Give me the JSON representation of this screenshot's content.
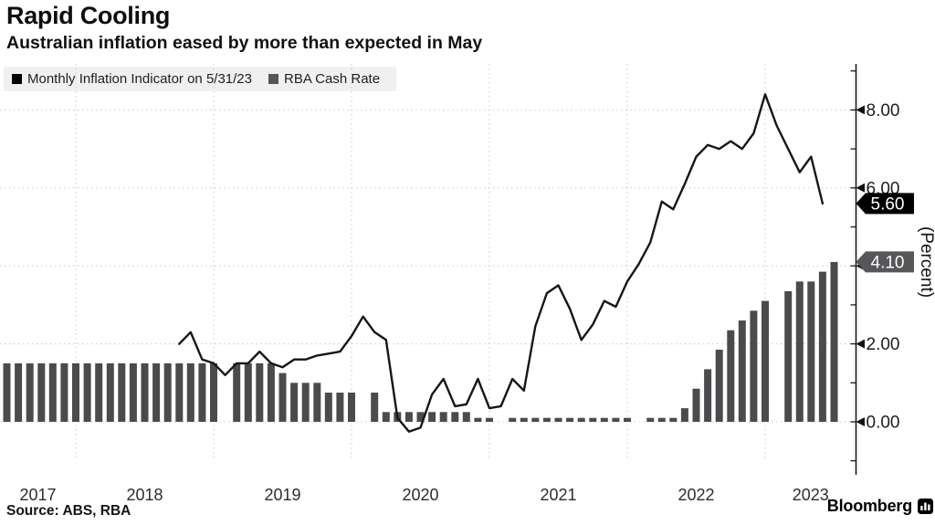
{
  "header": {
    "title": "Rapid Cooling",
    "subtitle": "Australian inflation eased by more than expected in May"
  },
  "legend": {
    "items": [
      {
        "label": "Monthly Inflation Indicator on 5/31/23",
        "color": "#000000"
      },
      {
        "label": "RBA Cash Rate",
        "color": "#565659"
      }
    ]
  },
  "footer": {
    "source": "Source: ABS, RBA",
    "brand": "Bloomberg"
  },
  "chart_data": {
    "type": "line+bar",
    "title": "Rapid Cooling",
    "ylabel": "(Percent)",
    "ylim": [
      -1,
      9
    ],
    "grid": "dotted",
    "legend_position": "top-left",
    "y_major_ticks": [
      {
        "value": 0,
        "label": "0.00"
      },
      {
        "value": 2,
        "label": "2.00"
      },
      {
        "value": 4,
        "label": "4.00"
      },
      {
        "value": 6,
        "label": "6.00"
      },
      {
        "value": 8,
        "label": "8.00"
      }
    ],
    "x_year_labels": [
      "2017",
      "2018",
      "2019",
      "2020",
      "2021",
      "2022",
      "2023"
    ],
    "callouts": [
      {
        "label": "5.60",
        "value": 5.6,
        "series": "Monthly Inflation Indicator on 5/31/23",
        "bg": "#000000",
        "fg": "#ffffff"
      },
      {
        "label": "4.10",
        "value": 4.1,
        "series": "RBA Cash Rate",
        "bg": "#57575a",
        "fg": "#ffffff"
      }
    ],
    "series": [
      {
        "name": "Monthly Inflation Indicator on 5/31/23",
        "type": "line",
        "color": "#161616",
        "points": [
          [
            "2018-09",
            2.0
          ],
          [
            "2018-10",
            2.3
          ],
          [
            "2018-11",
            1.6
          ],
          [
            "2018-12",
            1.5
          ],
          [
            "2019-01",
            1.2
          ],
          [
            "2019-02",
            1.5
          ],
          [
            "2019-03",
            1.5
          ],
          [
            "2019-04",
            1.8
          ],
          [
            "2019-05",
            1.5
          ],
          [
            "2019-06",
            1.4
          ],
          [
            "2019-07",
            1.6
          ],
          [
            "2019-08",
            1.6
          ],
          [
            "2019-09",
            1.7
          ],
          [
            "2019-10",
            1.75
          ],
          [
            "2019-11",
            1.8
          ],
          [
            "2019-12",
            2.2
          ],
          [
            "2020-01",
            2.7
          ],
          [
            "2020-02",
            2.3
          ],
          [
            "2020-03",
            2.1
          ],
          [
            "2020-04",
            0.1
          ],
          [
            "2020-05",
            -0.25
          ],
          [
            "2020-06",
            -0.15
          ],
          [
            "2020-07",
            0.7
          ],
          [
            "2020-08",
            1.1
          ],
          [
            "2020-09",
            0.4
          ],
          [
            "2020-10",
            0.45
          ],
          [
            "2020-11",
            1.1
          ],
          [
            "2020-12",
            0.35
          ],
          [
            "2021-01",
            0.4
          ],
          [
            "2021-02",
            1.1
          ],
          [
            "2021-03",
            0.8
          ],
          [
            "2021-04",
            2.45
          ],
          [
            "2021-05",
            3.3
          ],
          [
            "2021-06",
            3.5
          ],
          [
            "2021-07",
            2.9
          ],
          [
            "2021-08",
            2.1
          ],
          [
            "2021-09",
            2.5
          ],
          [
            "2021-10",
            3.1
          ],
          [
            "2021-11",
            2.95
          ],
          [
            "2021-12",
            3.6
          ],
          [
            "2022-01",
            4.05
          ],
          [
            "2022-02",
            4.6
          ],
          [
            "2022-03",
            5.65
          ],
          [
            "2022-04",
            5.45
          ],
          [
            "2022-05",
            6.1
          ],
          [
            "2022-06",
            6.8
          ],
          [
            "2022-07",
            7.1
          ],
          [
            "2022-08",
            7.0
          ],
          [
            "2022-09",
            7.2
          ],
          [
            "2022-10",
            7.0
          ],
          [
            "2022-11",
            7.4
          ],
          [
            "2022-12",
            8.4
          ],
          [
            "2023-01",
            7.6
          ],
          [
            "2023-02",
            7.0
          ],
          [
            "2023-03",
            6.4
          ],
          [
            "2023-04",
            6.8
          ],
          [
            "2023-05",
            5.6
          ]
        ]
      },
      {
        "name": "RBA Cash Rate",
        "type": "bar",
        "color": "#4b4b4d",
        "points": [
          [
            "2017-06",
            1.5
          ],
          [
            "2017-07",
            1.5
          ],
          [
            "2017-08",
            1.5
          ],
          [
            "2017-09",
            1.5
          ],
          [
            "2017-10",
            1.5
          ],
          [
            "2017-11",
            1.5
          ],
          [
            "2017-12",
            1.5
          ],
          [
            "2018-01",
            1.5
          ],
          [
            "2018-02",
            1.5
          ],
          [
            "2018-03",
            1.5
          ],
          [
            "2018-04",
            1.5
          ],
          [
            "2018-05",
            1.5
          ],
          [
            "2018-06",
            1.5
          ],
          [
            "2018-07",
            1.5
          ],
          [
            "2018-08",
            1.5
          ],
          [
            "2018-09",
            1.5
          ],
          [
            "2018-10",
            1.5
          ],
          [
            "2018-11",
            1.5
          ],
          [
            "2018-12",
            1.5
          ],
          [
            "2019-02",
            1.5
          ],
          [
            "2019-03",
            1.5
          ],
          [
            "2019-04",
            1.5
          ],
          [
            "2019-05",
            1.5
          ],
          [
            "2019-06",
            1.25
          ],
          [
            "2019-07",
            1.0
          ],
          [
            "2019-08",
            1.0
          ],
          [
            "2019-09",
            1.0
          ],
          [
            "2019-10",
            0.75
          ],
          [
            "2019-11",
            0.75
          ],
          [
            "2019-12",
            0.75
          ],
          [
            "2020-02",
            0.75
          ],
          [
            "2020-03",
            0.25
          ],
          [
            "2020-04",
            0.25
          ],
          [
            "2020-05",
            0.25
          ],
          [
            "2020-06",
            0.25
          ],
          [
            "2020-07",
            0.25
          ],
          [
            "2020-08",
            0.25
          ],
          [
            "2020-09",
            0.25
          ],
          [
            "2020-10",
            0.25
          ],
          [
            "2020-11",
            0.1
          ],
          [
            "2020-12",
            0.1
          ],
          [
            "2021-02",
            0.1
          ],
          [
            "2021-03",
            0.1
          ],
          [
            "2021-04",
            0.1
          ],
          [
            "2021-05",
            0.1
          ],
          [
            "2021-06",
            0.1
          ],
          [
            "2021-07",
            0.1
          ],
          [
            "2021-08",
            0.1
          ],
          [
            "2021-09",
            0.1
          ],
          [
            "2021-10",
            0.1
          ],
          [
            "2021-11",
            0.1
          ],
          [
            "2021-12",
            0.1
          ],
          [
            "2022-02",
            0.1
          ],
          [
            "2022-03",
            0.1
          ],
          [
            "2022-04",
            0.1
          ],
          [
            "2022-05",
            0.35
          ],
          [
            "2022-06",
            0.85
          ],
          [
            "2022-07",
            1.35
          ],
          [
            "2022-08",
            1.85
          ],
          [
            "2022-09",
            2.35
          ],
          [
            "2022-10",
            2.6
          ],
          [
            "2022-11",
            2.85
          ],
          [
            "2022-12",
            3.1
          ],
          [
            "2023-02",
            3.35
          ],
          [
            "2023-03",
            3.6
          ],
          [
            "2023-04",
            3.6
          ],
          [
            "2023-05",
            3.85
          ],
          [
            "2023-06",
            4.1
          ]
        ]
      }
    ]
  }
}
